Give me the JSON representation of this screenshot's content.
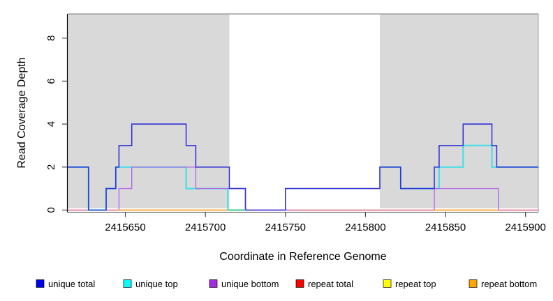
{
  "chart_data": {
    "type": "line",
    "subtype": "step-coverage-plot",
    "title": "",
    "xlabel": "Coordinate in Reference Genome",
    "ylabel": "Read Coverage Depth",
    "xlim": [
      2415614,
      2415908
    ],
    "ylim": [
      0,
      9.1
    ],
    "xticks": [
      2415650,
      2415700,
      2415750,
      2415800,
      2415850,
      2415900
    ],
    "yticks": [
      0,
      2,
      4,
      6,
      8
    ],
    "grid": false,
    "legend_position": "bottom",
    "plot_bg": "#ffffff",
    "shaded_regions": [
      {
        "name": "left-repeat-region",
        "x0": 2415614,
        "x1": 2415715,
        "color": "#d9d9d9"
      },
      {
        "name": "right-repeat-region",
        "x0": 2415809,
        "x1": 2415908,
        "color": "#d9d9d9"
      }
    ],
    "series": [
      {
        "name": "repeat total",
        "line_color": "#ce3a60",
        "legend_color": "#ff0000",
        "segments": [
          {
            "x": [
              2415614
            ],
            "v": [
              0
            ],
            "end": 2415908
          }
        ]
      },
      {
        "name": "repeat top",
        "line_color": "#f5e73b",
        "legend_color": "#ffff00",
        "segments": [
          {
            "x": [
              2415645
            ],
            "v": [
              0
            ],
            "end": 2415714
          },
          {
            "x": [
              2415843
            ],
            "v": [
              0
            ],
            "end": 2415883
          }
        ]
      },
      {
        "name": "repeat bottom",
        "line_color": "#ff9e1c",
        "legend_color": "#ffa500",
        "segments": [
          {
            "x": [
              2415645
            ],
            "v": [
              0
            ],
            "end": 2415714
          },
          {
            "x": [
              2415843
            ],
            "v": [
              0
            ],
            "end": 2415883
          }
        ]
      },
      {
        "name": "unique top",
        "line_color": "#4adee6",
        "legend_color": "#00ffff",
        "segments": [
          {
            "x": [
              2415614,
              2415627,
              2415638,
              2415644,
              2415688,
              2415714
            ],
            "v": [
              2,
              0,
              1,
              2,
              1,
              0
            ],
            "end": 2415725
          },
          {
            "x": [
              2415809,
              2415822,
              2415846,
              2415861,
              2415879
            ],
            "v": [
              2,
              1,
              2,
              3,
              2
            ],
            "end": 2415908
          }
        ]
      },
      {
        "name": "unique bottom",
        "line_color": "#b56ce4",
        "legend_color": "#a52be0",
        "segments": [
          {
            "x": [
              2415646,
              2415646,
              2415654,
              2415694,
              2415725
            ],
            "v": [
              0,
              1,
              2,
              1,
              0
            ],
            "end": 2415752
          },
          {
            "x": [
              2415843,
              2415843,
              2415883
            ],
            "v": [
              0,
              1,
              0
            ],
            "end": 2415883
          }
        ]
      },
      {
        "name": "unique total",
        "line_color": "#3434d4",
        "legend_color": "#0000f0",
        "segments": [
          {
            "x": [
              2415614,
              2415627,
              2415638,
              2415644,
              2415646,
              2415654,
              2415688,
              2415694,
              2415715,
              2415725,
              2415750,
              2415809,
              2415822,
              2415843,
              2415846,
              2415861,
              2415879,
              2415882
            ],
            "v": [
              2,
              0,
              1,
              2,
              3,
              4,
              3,
              2,
              1,
              0,
              1,
              2,
              1,
              2,
              3,
              4,
              3,
              2
            ],
            "end": 2415908
          }
        ]
      }
    ],
    "overlap_blend_segments": [
      {
        "name": "cyan-over-orange-blend",
        "x0": 2415714,
        "x1": 2415725,
        "v": 0,
        "color": "#56cd83"
      }
    ],
    "legend": [
      {
        "label": "unique total",
        "color": "#0000f0"
      },
      {
        "label": "unique top",
        "color": "#00ffff"
      },
      {
        "label": "unique bottom",
        "color": "#a52be0"
      },
      {
        "label": "repeat total",
        "color": "#ff0000"
      },
      {
        "label": "repeat top",
        "color": "#ffff00"
      },
      {
        "label": "repeat bottom",
        "color": "#ffa500"
      }
    ]
  }
}
